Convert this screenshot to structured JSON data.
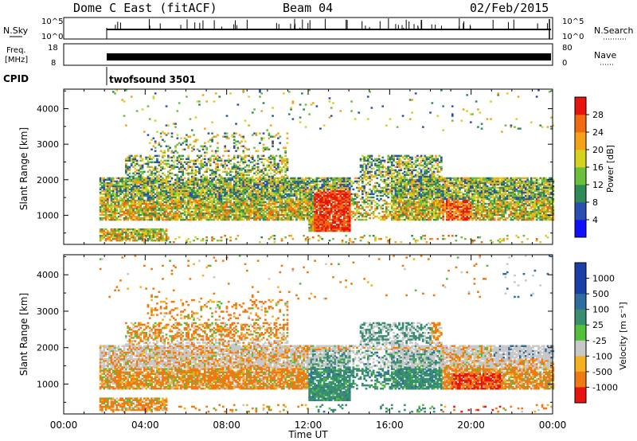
{
  "header": {
    "station": "Dome C East (fitACF)",
    "beam": "Beam 04",
    "date": "02/Feb/2015"
  },
  "strips": {
    "nsky_label": "N.Sky",
    "nsky_ticks": [
      "10^5",
      "10^0"
    ],
    "nsearch_label": "N.Search",
    "nsearch_ticks": [
      "10^5",
      "10^0"
    ],
    "freq_label_1": "Freq.",
    "freq_label_2": "[MHz]",
    "freq_ticks": [
      "18",
      "8"
    ],
    "nave_label": "Nave",
    "nave_ticks": [
      "80",
      "0"
    ],
    "cpid_label": "CPID",
    "cpid_value": "twofsound 3501"
  },
  "chart_data": [
    {
      "type": "heatmap",
      "name": "power-panel",
      "ylabel": "Slant Range [km]",
      "xlabel": "Time UT",
      "x_ticks": [
        "00:00",
        "04:00",
        "08:00",
        "12:00",
        "16:00",
        "20:00",
        "00:00"
      ],
      "x_range_hours": [
        0,
        24
      ],
      "y_ticks": [
        "1000",
        "2000",
        "3000",
        "4000"
      ],
      "y_range_km": [
        180,
        4550
      ],
      "data_start_hours": 1.75,
      "colorbar": {
        "label": "Power [dB]",
        "ticks": [
          "4",
          "8",
          "12",
          "16",
          "20",
          "24",
          "28"
        ],
        "range": [
          0,
          32
        ],
        "colors": [
          "#1010ff",
          "#2a4fb0",
          "#2e8b57",
          "#6cbf3a",
          "#d6d21e",
          "#f5a21a",
          "#f06a10",
          "#e8140e"
        ]
      },
      "echo_regions": [
        {
          "t0": 1.75,
          "t1": 24,
          "r0": 900,
          "r1": 2000,
          "level": "mixed"
        },
        {
          "t0": 12.2,
          "t1": 14.0,
          "r0": 500,
          "r1": 1700,
          "level": "high"
        },
        {
          "t0": 4.0,
          "t1": 11.0,
          "r0": 2000,
          "r1": 3100,
          "level": "mixed"
        }
      ]
    },
    {
      "type": "heatmap",
      "name": "velocity-panel",
      "ylabel": "Slant Range [km]",
      "xlabel": "Time UT",
      "x_ticks": [
        "00:00",
        "04:00",
        "08:00",
        "12:00",
        "16:00",
        "20:00",
        "00:00"
      ],
      "x_range_hours": [
        0,
        24
      ],
      "y_ticks": [
        "1000",
        "2000",
        "3000",
        "4000"
      ],
      "y_range_km": [
        180,
        4550
      ],
      "colorbar": {
        "label": "Velocity [m s⁻¹]",
        "ticks": [
          "1000",
          "500",
          "100",
          "25",
          "-25",
          "-100",
          "-500",
          "-1000"
        ],
        "colors": [
          "#1b3fa8",
          "#2e6da0",
          "#3a8e70",
          "#52c03a",
          "#c8c8c8",
          "#f5b020",
          "#f07a12",
          "#e8140e"
        ]
      }
    }
  ],
  "axis_title": "Time UT"
}
